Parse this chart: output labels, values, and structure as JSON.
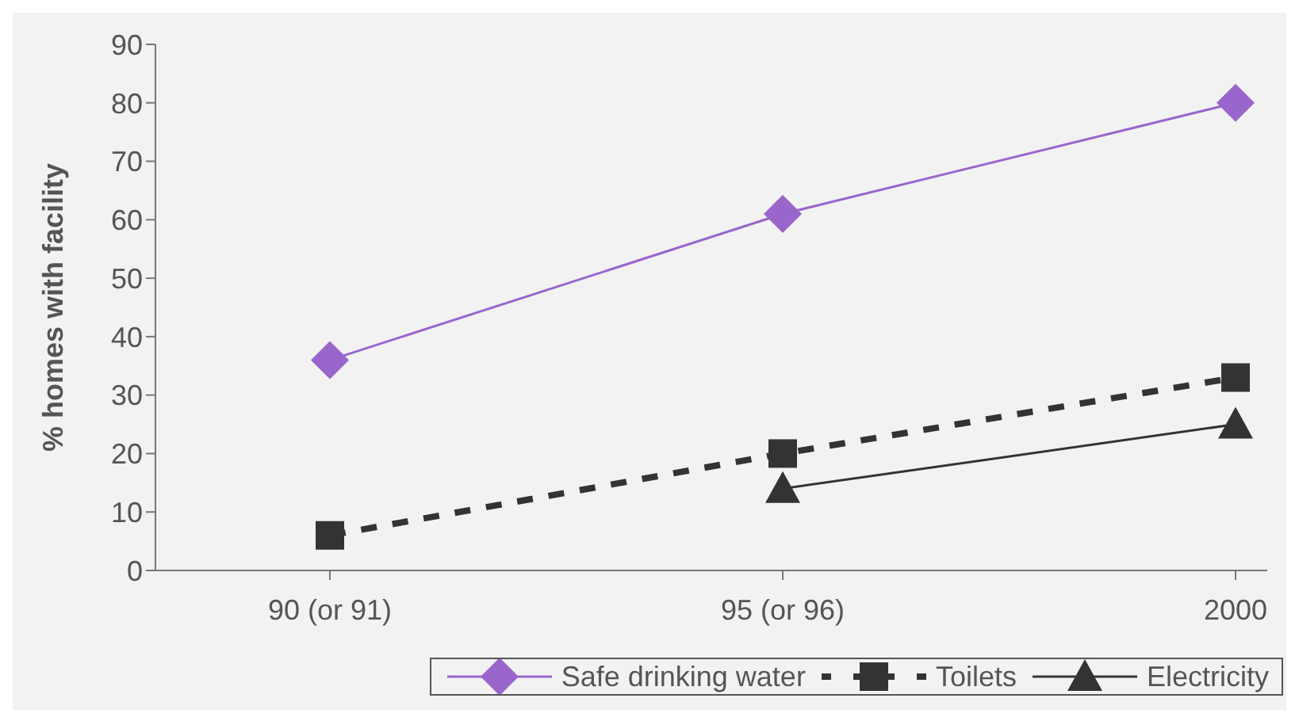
{
  "chart_data": {
    "type": "line",
    "ylabel": "% homes with facility",
    "categories": [
      "90 (or 91)",
      "95 (or 96)",
      "2000"
    ],
    "series": [
      {
        "name": "Safe drinking water",
        "color": "#9966cc",
        "values": [
          36,
          61,
          80
        ],
        "marker": "diamond",
        "line_style": "solid"
      },
      {
        "name": "Toilets",
        "color": "#333333",
        "values": [
          6,
          20,
          33
        ],
        "marker": "square",
        "line_style": "dashed"
      },
      {
        "name": "Electricity",
        "color": "#333333",
        "values": [
          null,
          14,
          25
        ],
        "marker": "triangle",
        "line_style": "solid"
      }
    ],
    "ylim": [
      0,
      90
    ],
    "yticks": [
      0,
      10,
      20,
      30,
      40,
      50,
      60,
      70,
      80,
      90
    ],
    "grid": false,
    "legend": "bottom"
  }
}
